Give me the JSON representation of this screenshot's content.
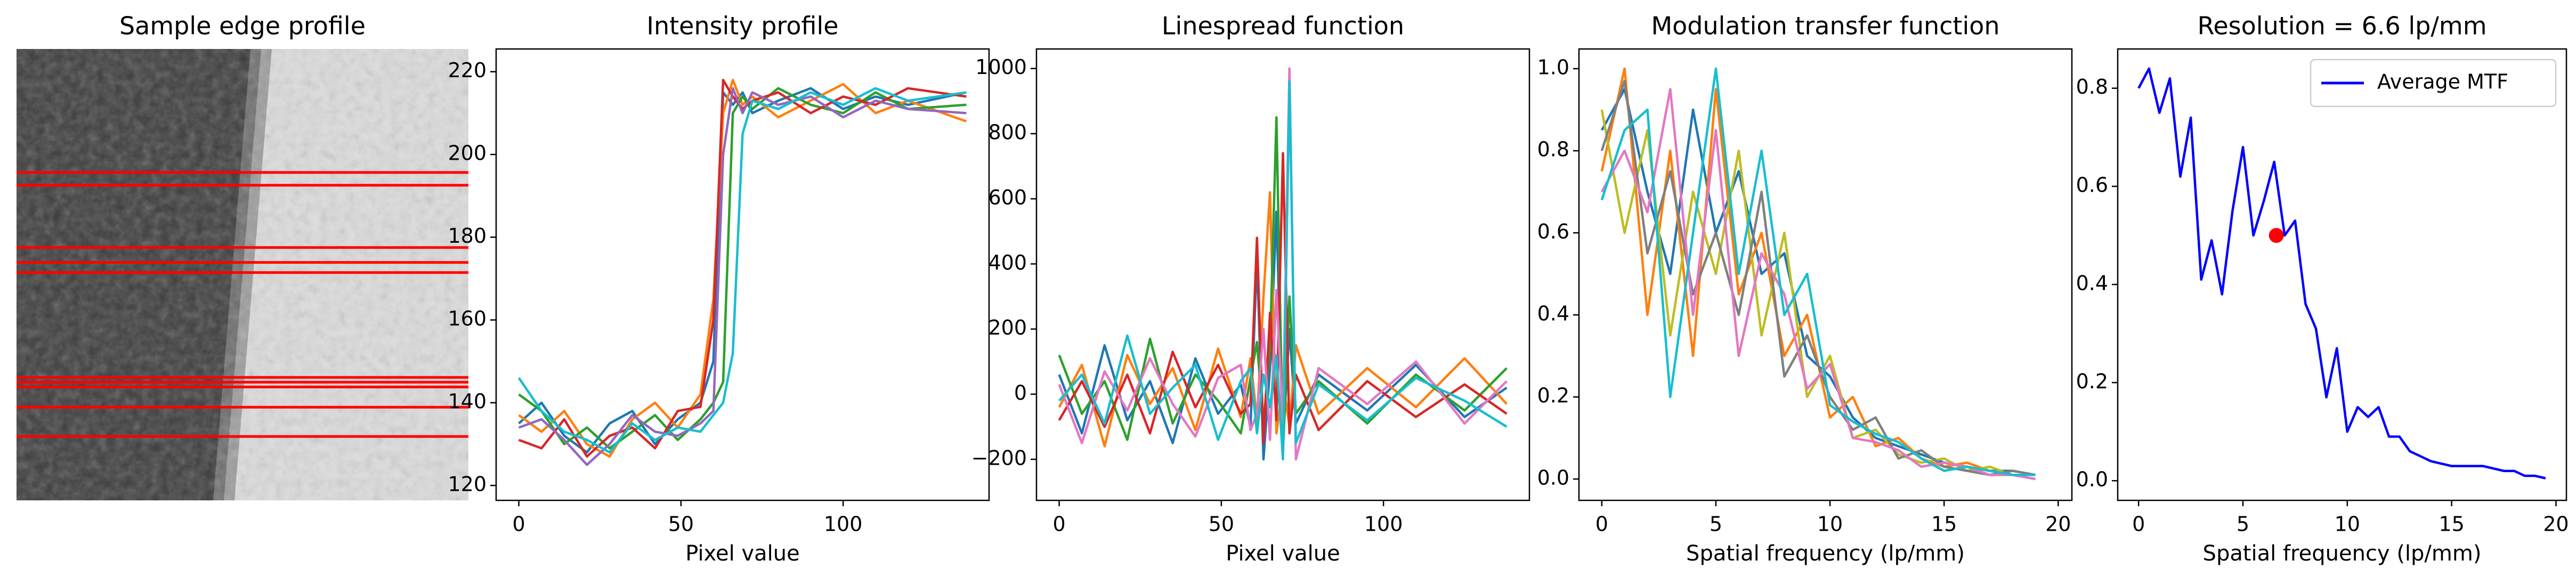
{
  "chart_data": [
    {
      "type": "image",
      "title": "Sample edge profile"
    },
    {
      "type": "line",
      "title": "Intensity profile",
      "xlabel": "Pixel value",
      "x": [
        0,
        7,
        14,
        21,
        28,
        35,
        42,
        49,
        56,
        60,
        63,
        66,
        69,
        72,
        80,
        90,
        100,
        110,
        120,
        138
      ],
      "xlim": [
        -7,
        145
      ],
      "xticks": [
        0,
        50,
        100
      ],
      "ylim": [
        116.4,
        225.5
      ],
      "yticks": [
        120,
        140,
        160,
        180,
        200,
        220
      ],
      "series": [
        {
          "color": "#1f77b4",
          "values": [
            135,
            140,
            132,
            128,
            135,
            138,
            130,
            136,
            140,
            150,
            215,
            212,
            215,
            210,
            213,
            216,
            211,
            214,
            212,
            215
          ]
        },
        {
          "color": "#ff7f0e",
          "values": [
            137,
            133,
            138,
            130,
            127,
            136,
            140,
            134,
            142,
            165,
            210,
            218,
            212,
            214,
            209,
            213,
            217,
            210,
            213,
            208
          ]
        },
        {
          "color": "#2ca02c",
          "values": [
            142,
            138,
            130,
            134,
            129,
            133,
            137,
            131,
            136,
            140,
            145,
            210,
            214,
            211,
            216,
            212,
            210,
            215,
            211,
            212
          ]
        },
        {
          "color": "#d62728",
          "values": [
            131,
            129,
            136,
            127,
            132,
            134,
            129,
            138,
            139,
            160,
            218,
            214,
            211,
            213,
            215,
            210,
            214,
            212,
            216,
            214
          ]
        },
        {
          "color": "#9467bd",
          "values": [
            134,
            136,
            131,
            125,
            130,
            137,
            133,
            132,
            135,
            138,
            200,
            216,
            210,
            215,
            212,
            214,
            209,
            213,
            211,
            210
          ]
        },
        {
          "color": "#17becf",
          "values": [
            146,
            138,
            133,
            131,
            128,
            135,
            131,
            134,
            133,
            137,
            140,
            152,
            205,
            213,
            211,
            215,
            212,
            216,
            213,
            215
          ]
        }
      ]
    },
    {
      "type": "line",
      "title": "Linespread function",
      "xlabel": "Pixel value",
      "x": [
        0,
        7,
        14,
        21,
        28,
        35,
        42,
        49,
        56,
        59,
        61,
        63,
        65,
        67,
        69,
        71,
        73,
        80,
        95,
        110,
        125,
        138
      ],
      "xlim": [
        -7,
        145
      ],
      "xticks": [
        0,
        50,
        100
      ],
      "ylim": [
        -326,
        1060
      ],
      "yticks": [
        {
          "value": -200,
          "label": "−200"
        },
        0,
        200,
        400,
        600,
        800,
        1000
      ],
      "series": [
        {
          "color": "#1f77b4",
          "values": [
            60,
            -120,
            150,
            -80,
            40,
            -150,
            110,
            -60,
            30,
            -100,
            420,
            -200,
            80,
            560,
            -150,
            200,
            -90,
            60,
            -50,
            90,
            -70,
            20
          ]
        },
        {
          "color": "#ff7f0e",
          "values": [
            -40,
            90,
            -160,
            120,
            -30,
            80,
            -110,
            140,
            -70,
            110,
            -80,
            300,
            620,
            -120,
            40,
            -100,
            150,
            -60,
            80,
            -40,
            110,
            -30
          ]
        },
        {
          "color": "#2ca02c",
          "values": [
            120,
            -60,
            40,
            -140,
            170,
            -90,
            60,
            -20,
            -120,
            50,
            160,
            -90,
            140,
            850,
            -180,
            300,
            -60,
            40,
            -90,
            60,
            -50,
            80
          ]
        },
        {
          "color": "#d62728",
          "values": [
            -80,
            40,
            -100,
            60,
            -120,
            130,
            -40,
            90,
            -60,
            -30,
            480,
            -150,
            250,
            -80,
            740,
            -120,
            60,
            -110,
            40,
            -70,
            30,
            -60
          ]
        },
        {
          "color": "#e377c2",
          "values": [
            30,
            -150,
            70,
            -50,
            110,
            -30,
            -130,
            50,
            90,
            -110,
            -60,
            200,
            -140,
            320,
            -90,
            1000,
            -200,
            80,
            -30,
            100,
            -90,
            40
          ]
        },
        {
          "color": "#17becf",
          "values": [
            -20,
            60,
            -90,
            180,
            -60,
            20,
            90,
            -140,
            40,
            80,
            -120,
            60,
            -40,
            120,
            -200,
            960,
            -150,
            30,
            -80,
            50,
            -20,
            -100
          ]
        }
      ]
    },
    {
      "type": "line",
      "title": "Modulation transfer function",
      "xlabel": "Spatial frequency (lp/mm)",
      "x": [
        0,
        1,
        2,
        3,
        4,
        5,
        6,
        7,
        8,
        9,
        10,
        11,
        12,
        13,
        14,
        15,
        16,
        17,
        18,
        19
      ],
      "xlim": [
        -1,
        20.6
      ],
      "xticks": [
        0,
        5,
        10,
        15,
        20
      ],
      "ylim": [
        -0.052,
        1.048
      ],
      "yticks": [
        {
          "value": 0,
          "label": "0.0"
        },
        0.2,
        0.4,
        0.6,
        0.8,
        {
          "value": 1,
          "label": "1.0"
        }
      ],
      "series": [
        {
          "color": "#1f77b4",
          "values": [
            0.85,
            0.95,
            0.7,
            0.5,
            0.9,
            0.6,
            0.75,
            0.5,
            0.55,
            0.3,
            0.25,
            0.15,
            0.1,
            0.08,
            0.06,
            0.04,
            0.03,
            0.02,
            0.02,
            0.01
          ]
        },
        {
          "color": "#ff7f0e",
          "values": [
            0.75,
            1.0,
            0.4,
            0.8,
            0.3,
            0.95,
            0.45,
            0.6,
            0.3,
            0.4,
            0.15,
            0.2,
            0.08,
            0.1,
            0.05,
            0.03,
            0.04,
            0.02,
            0.01,
            0.01
          ]
        },
        {
          "color": "#bcbd22",
          "values": [
            0.9,
            0.6,
            0.85,
            0.35,
            0.7,
            0.5,
            0.8,
            0.35,
            0.6,
            0.2,
            0.3,
            0.1,
            0.12,
            0.06,
            0.04,
            0.05,
            0.02,
            0.03,
            0.01,
            0.0
          ]
        },
        {
          "color": "#7f7f7f",
          "values": [
            0.8,
            0.97,
            0.55,
            0.75,
            0.45,
            0.6,
            0.4,
            0.7,
            0.25,
            0.35,
            0.2,
            0.12,
            0.15,
            0.05,
            0.07,
            0.03,
            0.02,
            0.01,
            0.02,
            0.01
          ]
        },
        {
          "color": "#e377c2",
          "values": [
            0.7,
            0.8,
            0.65,
            0.95,
            0.4,
            0.85,
            0.3,
            0.55,
            0.45,
            0.22,
            0.28,
            0.1,
            0.09,
            0.07,
            0.03,
            0.04,
            0.03,
            0.01,
            0.01,
            0.0
          ]
        },
        {
          "color": "#17becf",
          "values": [
            0.68,
            0.85,
            0.9,
            0.2,
            0.6,
            1.0,
            0.5,
            0.8,
            0.4,
            0.5,
            0.18,
            0.14,
            0.11,
            0.09,
            0.05,
            0.02,
            0.03,
            0.02,
            0.01,
            0.01
          ]
        }
      ]
    },
    {
      "type": "line",
      "title": "Resolution = 6.6 lp/mm",
      "xlabel": "Spatial frequency (lp/mm)",
      "x": [
        0,
        0.5,
        1,
        1.5,
        2,
        2.5,
        3,
        3.5,
        4,
        4.5,
        5,
        5.5,
        6,
        6.5,
        7,
        7.5,
        8,
        8.5,
        9,
        9.5,
        10,
        10.5,
        11,
        11.5,
        12,
        12.5,
        13,
        13.5,
        14,
        14.5,
        15,
        15.5,
        16,
        16.5,
        17,
        17.5,
        18,
        18.5,
        19,
        19.5
      ],
      "xlim": [
        -1,
        20.5
      ],
      "xticks": [
        0,
        5,
        10,
        15,
        20
      ],
      "ylim": [
        -0.04,
        0.88
      ],
      "yticks": [
        {
          "value": 0,
          "label": "0.0"
        },
        0.2,
        0.4,
        0.6,
        0.8
      ],
      "legend": "upper right",
      "series": [
        {
          "name": "Average MTF",
          "color": "#0000ff",
          "values": [
            0.8,
            0.84,
            0.75,
            0.82,
            0.62,
            0.74,
            0.41,
            0.49,
            0.38,
            0.55,
            0.68,
            0.5,
            0.57,
            0.65,
            0.5,
            0.53,
            0.36,
            0.31,
            0.17,
            0.27,
            0.1,
            0.15,
            0.13,
            0.15,
            0.09,
            0.09,
            0.06,
            0.05,
            0.04,
            0.035,
            0.03,
            0.03,
            0.03,
            0.03,
            0.025,
            0.02,
            0.02,
            0.01,
            0.01,
            0.005
          ]
        }
      ],
      "marker": {
        "x": 6.6,
        "y": 0.5,
        "color": "#ff0000"
      }
    }
  ]
}
